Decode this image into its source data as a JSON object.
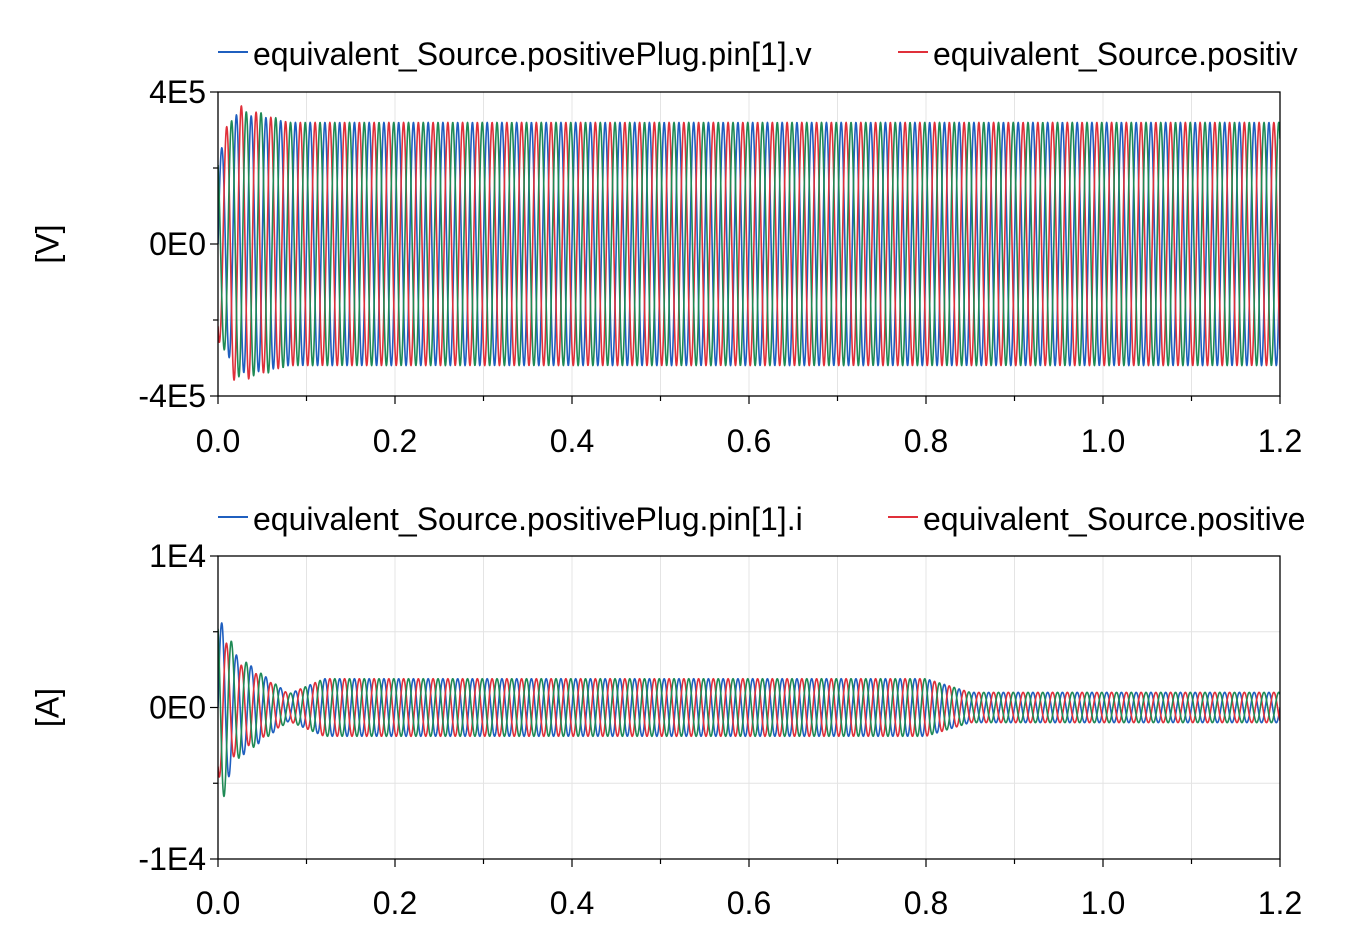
{
  "chart_data": [
    {
      "type": "line",
      "ylabel": "[V]",
      "xlabel": "",
      "xlim": [
        0,
        1.2
      ],
      "ylim": [
        -400000,
        400000
      ],
      "x_tick_labels": [
        "0.0",
        "0.2",
        "0.4",
        "0.6",
        "0.8",
        "1.0",
        "1.2"
      ],
      "x_tick_values": [
        0,
        0.2,
        0.4,
        0.6,
        0.8,
        1.0,
        1.2
      ],
      "y_tick_labels": [
        "4E5",
        "0E0",
        "-4E5"
      ],
      "y_tick_values": [
        400000,
        0,
        -400000
      ],
      "grid": true,
      "legend_position": "top",
      "frequency_hz": 60,
      "series": [
        {
          "name": "equivalent_Source.positivePlug.pin[1].v",
          "color": "#1f5fbf",
          "phase_deg": 0,
          "envelope": {
            "x": [
              0,
              0.02,
              0.05,
              0.08,
              1.2
            ],
            "y": [
              230000,
              340000,
              335000,
              320000,
              320000
            ]
          }
        },
        {
          "name": "equivalent_Source.positiv",
          "color": "#e0303a",
          "phase_deg": -120,
          "envelope": {
            "x": [
              0,
              0.02,
              0.05,
              0.08,
              1.2
            ],
            "y": [
              250000,
              370000,
              340000,
              320000,
              320000
            ]
          }
        },
        {
          "name": "",
          "color": "#1f8a55",
          "phase_deg": 120,
          "envelope": {
            "x": [
              0,
              0.02,
              0.05,
              0.08,
              1.2
            ],
            "y": [
              240000,
              350000,
              345000,
              320000,
              320000
            ]
          }
        }
      ]
    },
    {
      "type": "line",
      "ylabel": "[A]",
      "xlabel": "",
      "xlim": [
        0,
        1.2
      ],
      "ylim": [
        -10000,
        10000
      ],
      "x_tick_labels": [
        "0.0",
        "0.2",
        "0.4",
        "0.6",
        "0.8",
        "1.0",
        "1.2"
      ],
      "x_tick_values": [
        0,
        0.2,
        0.4,
        0.6,
        0.8,
        1.0,
        1.2
      ],
      "y_tick_labels": [
        "1E4",
        "0E0",
        "-1E4"
      ],
      "y_tick_values": [
        10000,
        0,
        -10000
      ],
      "grid": true,
      "legend_position": "top",
      "frequency_hz": 60,
      "series": [
        {
          "name": "equivalent_Source.positivePlug.pin[1].i",
          "color": "#1f5fbf",
          "phase_deg": 0,
          "envelope": {
            "x": [
              0,
              0.005,
              0.02,
              0.05,
              0.08,
              0.12,
              0.8,
              0.85,
              1.2
            ],
            "y": [
              5500,
              5600,
              3500,
              2200,
              900,
              1900,
              1900,
              1000,
              1000
            ]
          }
        },
        {
          "name": "equivalent_Source.positive",
          "color": "#e0303a",
          "phase_deg": -120,
          "envelope": {
            "x": [
              0,
              0.005,
              0.02,
              0.05,
              0.08,
              0.12,
              0.8,
              0.85,
              1.2
            ],
            "y": [
              4500,
              4800,
              3000,
              2000,
              900,
              1900,
              1900,
              1000,
              1000
            ]
          }
        },
        {
          "name": "",
          "color": "#1f8a55",
          "phase_deg": 120,
          "envelope": {
            "x": [
              0,
              0.005,
              0.02,
              0.05,
              0.08,
              0.12,
              0.8,
              0.85,
              1.2
            ],
            "y": [
              6000,
              6200,
              3500,
              2200,
              900,
              1900,
              1900,
              1000,
              1000
            ]
          }
        }
      ]
    }
  ]
}
